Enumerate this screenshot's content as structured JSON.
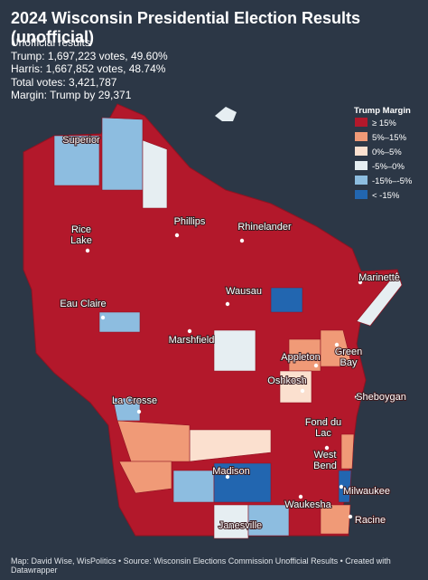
{
  "title": "2024 Wisconsin Presidential Election Results (unofficial)",
  "summary": [
    "Unofficial results",
    "Trump: 1,697,223 votes, 49.60%",
    "Harris: 1,667,852 votes, 48.74%",
    "Total votes: 3,421,787",
    "Margin: Trump by 29,371"
  ],
  "legend": {
    "title": "Trump Margin",
    "items": [
      {
        "label": "≥ 15%",
        "color": "#b3182b"
      },
      {
        "label": "5%–15%",
        "color": "#f09a77"
      },
      {
        "label": "0%–5%",
        "color": "#fbe0cf"
      },
      {
        "label": "-5%–0%",
        "color": "#e6eef2"
      },
      {
        "label": "-15%–-5%",
        "color": "#8dbde0"
      },
      {
        "label": "< -15%",
        "color": "#2266b0"
      }
    ]
  },
  "cities": [
    "Superior",
    "Rice\nLake",
    "Phillips",
    "Rhinelander",
    "Marinette",
    "Eau Claire",
    "Wausau",
    "Marshfield",
    "Green\nBay",
    "Appleton",
    "Oshkosh",
    "La Crosse",
    "Fond du\nLac",
    "Sheboygan",
    "West\nBend",
    "Madison",
    "Milwaukee",
    "Waukesha",
    "Janesville",
    "Racine"
  ],
  "footer": "Map: David Wise, WisPolitics • Source: Wisconsin Elections Commission Unofficial Results • Created with Datawrapper"
}
